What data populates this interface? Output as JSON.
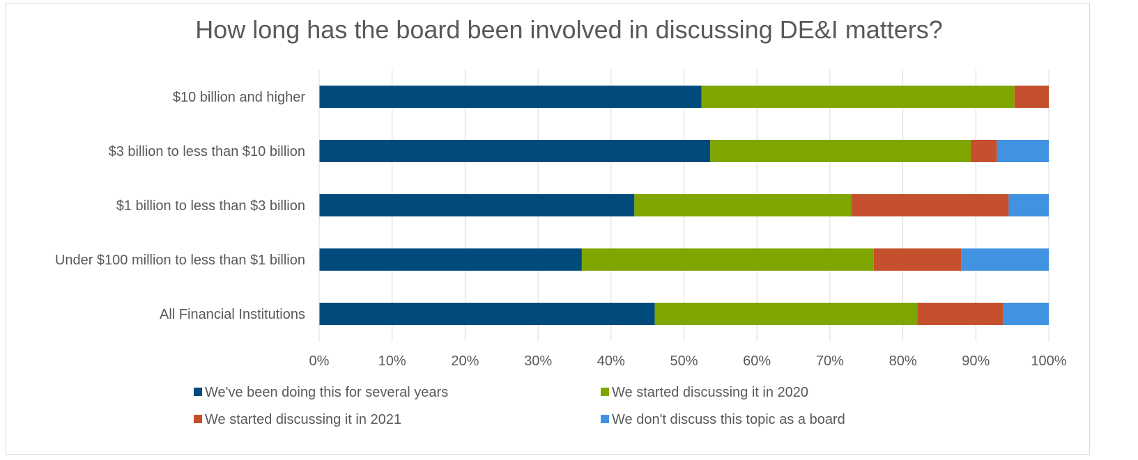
{
  "chart_data": {
    "type": "bar",
    "orientation": "horizontal",
    "stacked": true,
    "title": "How long has the board been involved in discussing DE&I matters?",
    "categories": [
      "$10 billion and higher",
      "$3 billion to less than $10 billion",
      "$1 billion to less than $3 billion",
      "Under $100 million to less than $1 billion",
      "All Financial Institutions"
    ],
    "series": [
      {
        "name": "We've been doing this for several years",
        "color": "#004b7c",
        "values": [
          52.4,
          53.6,
          43.2,
          36.0,
          46.0
        ]
      },
      {
        "name": "We started discussing it in 2020",
        "color": "#7fa600",
        "values": [
          42.9,
          35.7,
          29.7,
          40.0,
          36.0
        ]
      },
      {
        "name": "We started discussing it in 2021",
        "color": "#c4502e",
        "values": [
          4.7,
          3.6,
          21.6,
          12.0,
          11.7
        ]
      },
      {
        "name": "We don't discuss this topic as a board",
        "color": "#4192e0",
        "values": [
          0,
          7.1,
          5.5,
          12.0,
          6.3
        ]
      }
    ],
    "x_ticks": [
      "0%",
      "10%",
      "20%",
      "30%",
      "40%",
      "50%",
      "60%",
      "70%",
      "80%",
      "90%",
      "100%"
    ],
    "xlim": [
      0,
      100
    ],
    "grid": true,
    "legend_position": "bottom"
  }
}
